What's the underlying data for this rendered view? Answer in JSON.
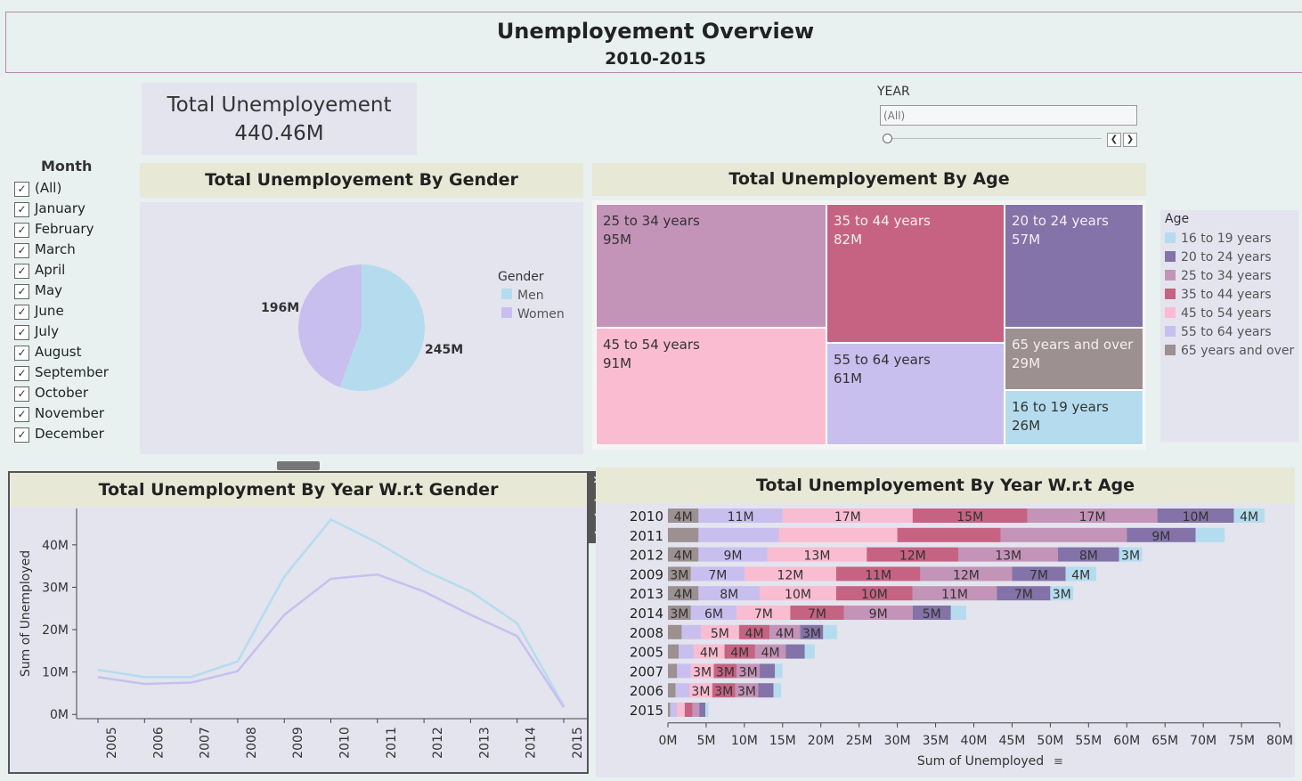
{
  "header": {
    "title": "Unemployement Overview",
    "subtitle": "2010-2015"
  },
  "kpi": {
    "label": "Total Unemployement",
    "value": "440.46M"
  },
  "year_filter": {
    "title": "YEAR",
    "value": "(All)"
  },
  "month_filter": {
    "title": "Month",
    "items": [
      "(All)",
      "January",
      "February",
      "March",
      "April",
      "May",
      "June",
      "July",
      "August",
      "September",
      "October",
      "November",
      "December"
    ],
    "checked": true
  },
  "colors": {
    "16 to 19 years": "#b5dcee",
    "20 to 24 years": "#8373a8",
    "25 to 34 years": "#c493b8",
    "35 to 44 years": "#c66382",
    "45 to 54 years": "#f9bcd0",
    "55 to 64 years": "#c8bfef",
    "65 years and over": "#9c9090",
    "Men": "#b5dcee",
    "Women": "#c8bfef"
  },
  "gender_chart": {
    "title": "Total Unemployement By Gender",
    "legend_title": "Gender",
    "legend": [
      "Men",
      "Women"
    ],
    "slice_labels": [
      "245M",
      "196M"
    ]
  },
  "age_chart": {
    "title": "Total Unemployement By Age",
    "legend_title": "Age",
    "cells": [
      {
        "label": "25 to 34 years",
        "value": "95M"
      },
      {
        "label": "35 to 44 years",
        "value": "82M"
      },
      {
        "label": "20 to 24 years",
        "value": "57M"
      },
      {
        "label": "45 to 54 years",
        "value": "91M"
      },
      {
        "label": "55 to 64 years",
        "value": "61M"
      },
      {
        "label": "65 years and over",
        "value": "29M"
      },
      {
        "label": "16 to 19 years",
        "value": "26M"
      }
    ],
    "legend": [
      "16 to 19 years",
      "20 to 24 years",
      "25 to 34 years",
      "35 to 44 years",
      "45 to 54 years",
      "55 to 64 years",
      "65 years and over"
    ]
  },
  "line_chart": {
    "title": "Total Unemployment By Year W.r.t Gender",
    "ylabel": "Sum of Unemployed"
  },
  "bar_chart": {
    "title": "Total Unemployement By Year W.r.t Age",
    "xlabel": "Sum of Unemployed"
  },
  "chart_data": [
    {
      "type": "pie",
      "title": "Total Unemployement By Gender",
      "categories": [
        "Men",
        "Women"
      ],
      "values": [
        245,
        196
      ],
      "unit": "M",
      "legend": "right"
    },
    {
      "type": "treemap",
      "title": "Total Unemployement By Age",
      "categories": [
        "25 to 34 years",
        "35 to 44 years",
        "20 to 24 years",
        "45 to 54 years",
        "55 to 64 years",
        "65 years and over",
        "16 to 19 years"
      ],
      "values": [
        95,
        82,
        57,
        91,
        61,
        29,
        26
      ],
      "unit": "M",
      "legend": "right"
    },
    {
      "type": "line",
      "title": "Total Unemployment By Year W.r.t Gender",
      "ylabel": "Sum of Unemployed",
      "x": [
        "2005",
        "2006",
        "2007",
        "2008",
        "2009",
        "2010",
        "2011",
        "2012",
        "2013",
        "2014",
        "2015"
      ],
      "series": [
        {
          "name": "Men",
          "values": [
            10.5,
            8.8,
            8.8,
            12.5,
            32.5,
            46,
            40.5,
            34,
            29,
            21.5,
            2
          ]
        },
        {
          "name": "Women",
          "values": [
            8.8,
            7.2,
            7.5,
            10.2,
            23.5,
            32,
            33,
            29,
            23.5,
            18.5,
            1.7
          ]
        }
      ],
      "yticks": [
        "0M",
        "10M",
        "20M",
        "30M",
        "40M"
      ],
      "ylim": [
        -1,
        49
      ],
      "grid": false
    },
    {
      "type": "bar",
      "orientation": "horizontal",
      "stacked": true,
      "title": "Total Unemployement By Year W.r.t Age",
      "xlabel": "Sum of Unemployed",
      "categories": [
        "2010",
        "2011",
        "2012",
        "2009",
        "2013",
        "2014",
        "2008",
        "2005",
        "2007",
        "2006",
        "2015"
      ],
      "series_order": [
        "65 years and over",
        "55 to 64 years",
        "45 to 54 years",
        "35 to 44 years",
        "25 to 34 years",
        "20 to 24 years",
        "16 to 19 years"
      ],
      "rows": [
        {
          "year": "2010",
          "values": [
            4,
            11,
            17,
            15,
            17,
            10,
            4
          ],
          "labels": [
            "4M",
            "11M",
            "17M",
            "15M",
            "17M",
            "10M",
            "4M"
          ]
        },
        {
          "year": "2011",
          "values": [
            4,
            10.5,
            15.5,
            13.5,
            16.5,
            9,
            3.8
          ],
          "labels": [
            "",
            "",
            "",
            "",
            "",
            "9M",
            ""
          ]
        },
        {
          "year": "2012",
          "values": [
            4,
            9,
            13,
            12,
            13,
            8,
            3
          ],
          "labels": [
            "4M",
            "9M",
            "13M",
            "12M",
            "13M",
            "8M",
            "3M"
          ]
        },
        {
          "year": "2009",
          "values": [
            3,
            7,
            12,
            11,
            12,
            7,
            4
          ],
          "labels": [
            "3M",
            "7M",
            "12M",
            "11M",
            "12M",
            "7M",
            "4M"
          ]
        },
        {
          "year": "2013",
          "values": [
            4,
            8,
            10,
            10,
            11,
            7,
            3
          ],
          "labels": [
            "4M",
            "8M",
            "10M",
            "10M",
            "11M",
            "7M",
            "3M"
          ]
        },
        {
          "year": "2014",
          "values": [
            3,
            6,
            7,
            7,
            9,
            5,
            2
          ],
          "labels": [
            "3M",
            "6M",
            "7M",
            "7M",
            "9M",
            "5M",
            ""
          ]
        },
        {
          "year": "2008",
          "values": [
            1.8,
            2.5,
            5,
            4,
            4,
            3,
            1.8
          ],
          "labels": [
            "",
            "",
            "5M",
            "4M",
            "4M",
            "3M",
            ""
          ]
        },
        {
          "year": "2005",
          "values": [
            1.4,
            2,
            4,
            4,
            4,
            2.5,
            1.3
          ],
          "labels": [
            "",
            "",
            "4M",
            "4M",
            "4M",
            "",
            ""
          ]
        },
        {
          "year": "2007",
          "values": [
            1.2,
            1.8,
            3,
            3,
            3,
            2,
            1
          ],
          "labels": [
            "",
            "",
            "3M",
            "3M",
            "3M",
            "",
            ""
          ]
        },
        {
          "year": "2006",
          "values": [
            1,
            1.8,
            3,
            3,
            3,
            2,
            1
          ],
          "labels": [
            "",
            "",
            "3M",
            "3M",
            "3M",
            "",
            ""
          ]
        },
        {
          "year": "2015",
          "values": [
            0.3,
            0.9,
            1,
            1,
            0.9,
            0.8,
            0.4
          ],
          "labels": [
            "",
            "",
            "",
            "",
            "",
            "",
            ""
          ]
        }
      ],
      "xticks": [
        "0M",
        "5M",
        "10M",
        "15M",
        "20M",
        "25M",
        "30M",
        "35M",
        "40M",
        "45M",
        "50M",
        "55M",
        "60M",
        "65M",
        "70M",
        "75M",
        "80M"
      ],
      "xlim": [
        0,
        80
      ],
      "grid": false
    }
  ]
}
